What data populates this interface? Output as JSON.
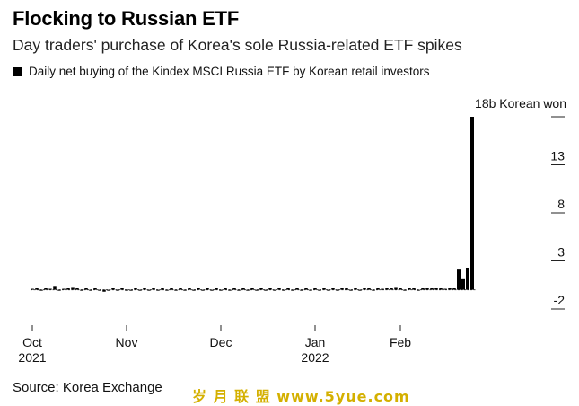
{
  "title": "Flocking to Russian ETF",
  "subtitle": "Day traders' purchase of Korea's sole Russia-related ETF spikes",
  "legend_label": "Daily net buying of the Kindex MSCI Russia ETF by Korean retail investors",
  "source": "Source: Korea Exchange",
  "watermark": "岁 月 联 盟  www.5yue.com",
  "colors": {
    "bar": "#000000",
    "baseline": "#444444",
    "axis": "#222222",
    "watermark": "#d4b000"
  },
  "chart_data": {
    "type": "bar",
    "title": "",
    "xlabel": "",
    "ylabel": "",
    "unit_label": "18b Korean won",
    "ylim": [
      -2,
      18
    ],
    "y_ticks": [
      -2,
      3,
      8,
      13,
      18
    ],
    "y_tick_labels": [
      "-2",
      "3",
      "8",
      "13",
      ""
    ],
    "x_ticks": [
      {
        "line1": "Oct",
        "line2": "2021",
        "index": 0
      },
      {
        "line1": "Nov",
        "line2": "",
        "index": 21
      },
      {
        "line1": "Dec",
        "line2": "",
        "index": 42
      },
      {
        "line1": "Jan",
        "line2": "2022",
        "index": 63
      },
      {
        "line1": "Feb",
        "line2": "",
        "index": 82
      }
    ],
    "values": [
      0.1,
      0.0,
      -0.1,
      0.0,
      0.1,
      0.4,
      -0.1,
      0.1,
      0.0,
      0.2,
      0.0,
      -0.1,
      0.0,
      -0.1,
      0.0,
      -0.1,
      -0.2,
      -0.1,
      0.0,
      -0.1,
      0.0,
      -0.1,
      -0.1,
      0.0,
      -0.1,
      0.0,
      -0.1,
      0.0,
      -0.1,
      0.0,
      -0.1,
      0.0,
      -0.1,
      0.0,
      -0.1,
      0.0,
      -0.1,
      0.0,
      -0.1,
      0.0,
      -0.1,
      0.0,
      -0.1,
      0.0,
      -0.1,
      0.0,
      -0.1,
      0.0,
      -0.1,
      0.0,
      -0.1,
      0.0,
      -0.1,
      0.0,
      -0.1,
      0.0,
      -0.1,
      0.0,
      -0.1,
      0.0,
      -0.1,
      0.0,
      -0.1,
      0.0,
      -0.1,
      0.0,
      -0.1,
      0.0,
      -0.1,
      0.0,
      0.0,
      -0.1,
      0.0,
      -0.1,
      0.0,
      0.0,
      -0.1,
      0.0,
      0.1,
      0.0,
      0.0,
      0.2,
      0.0,
      -0.1,
      0.0,
      0.0,
      -0.1,
      0.0,
      0.0,
      0.0,
      0.0,
      0.0,
      0.1,
      0.0,
      0.0,
      2.1,
      1.1,
      2.3,
      18.0
    ]
  }
}
